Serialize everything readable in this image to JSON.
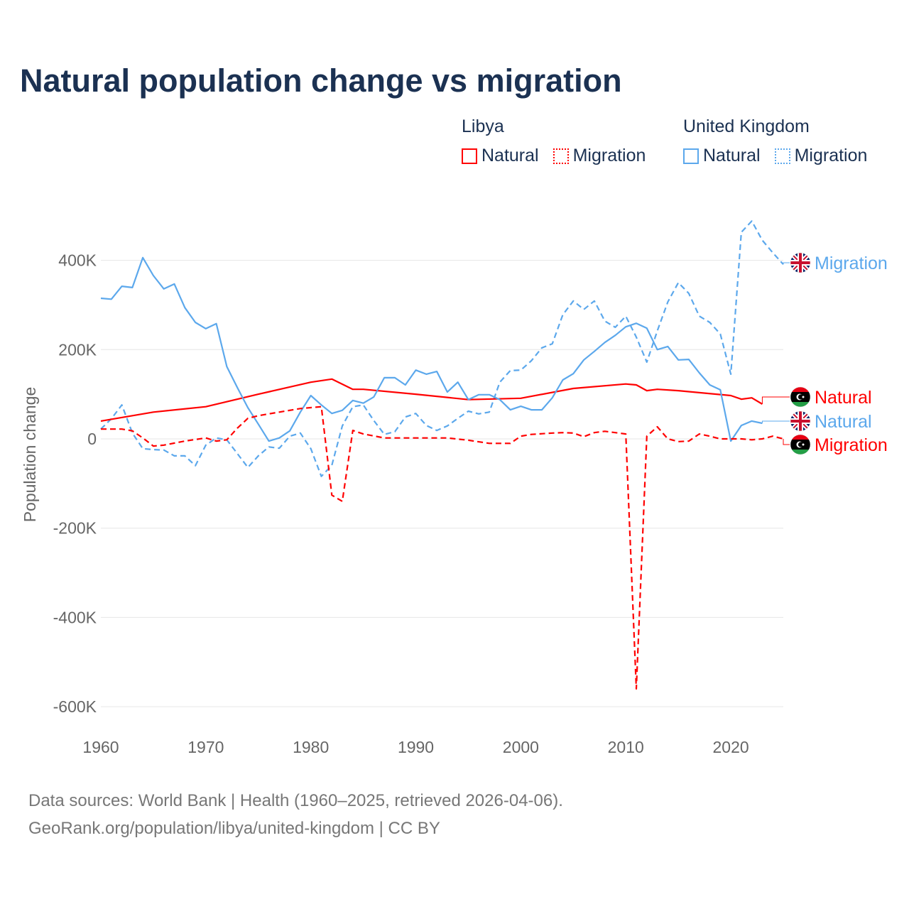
{
  "title": "Natural population change vs migration",
  "legend": {
    "groups": [
      {
        "name": "Libya",
        "items": [
          {
            "label": "Natural",
            "style": "solid",
            "color": "#ff0000"
          },
          {
            "label": "Migration",
            "style": "dotted",
            "color": "#ff0000"
          }
        ]
      },
      {
        "name": "United Kingdom",
        "items": [
          {
            "label": "Natural",
            "style": "solid",
            "color": "#5ca8ec"
          },
          {
            "label": "Migration",
            "style": "dotted",
            "color": "#5ca8ec"
          }
        ]
      }
    ]
  },
  "footer": {
    "line1": "Data sources: World Bank | Health (1960–2025, retrieved 2026-04-06).",
    "line2": "GeoRank.org/population/libya/united-kingdom | CC BY"
  },
  "chart_data": {
    "type": "line",
    "title": "Natural population change vs migration",
    "xlabel": "",
    "ylabel": "Population change",
    "xlim": [
      1960,
      2025
    ],
    "ylim": [
      -600000,
      500000
    ],
    "xticks": [
      1960,
      1970,
      1980,
      1990,
      2000,
      2010,
      2020
    ],
    "xtick_labels": [
      "1960",
      "1970",
      "1980",
      "1990",
      "2000",
      "2010",
      "2020"
    ],
    "yticks": [
      400000,
      200000,
      0,
      -200000,
      -400000,
      -600000
    ],
    "ytick_labels": [
      "400K",
      "200K",
      "0",
      "-200K",
      "-400K",
      "-600K"
    ],
    "grid": true,
    "series": [
      {
        "name": "United Kingdom Migration",
        "end_label": "Migration",
        "country": "uk",
        "color": "#5ca8ec",
        "dash": true,
        "x": [
          1960,
          1961,
          1962,
          1963,
          1964,
          1965,
          1966,
          1967,
          1968,
          1969,
          1970,
          1971,
          1972,
          1973,
          1974,
          1975,
          1976,
          1977,
          1978,
          1979,
          1980,
          1981,
          1982,
          1983,
          1984,
          1985,
          1986,
          1987,
          1988,
          1989,
          1990,
          1991,
          1992,
          1993,
          1994,
          1995,
          1996,
          1997,
          1998,
          1999,
          2000,
          2001,
          2002,
          2003,
          2004,
          2005,
          2006,
          2007,
          2008,
          2009,
          2010,
          2011,
          2012,
          2013,
          2014,
          2015,
          2016,
          2017,
          2018,
          2019,
          2020,
          2021,
          2022,
          2023,
          2024,
          2025
        ],
        "y": [
          22000,
          45000,
          76000,
          13000,
          -22000,
          -24000,
          -25000,
          -38000,
          -38000,
          -60000,
          -14000,
          2000,
          -2000,
          -33000,
          -64000,
          -38000,
          -18000,
          -21000,
          6000,
          13000,
          -22000,
          -84000,
          -59000,
          29000,
          72000,
          76000,
          41000,
          10000,
          16000,
          49000,
          57000,
          30000,
          19000,
          29000,
          46000,
          62000,
          56000,
          60000,
          127000,
          153000,
          154000,
          175000,
          204000,
          213000,
          278000,
          309000,
          290000,
          309000,
          264000,
          250000,
          275000,
          228000,
          172000,
          242000,
          307000,
          350000,
          326000,
          275000,
          261000,
          235000,
          145000,
          463000,
          488000,
          445000,
          417000,
          391000
        ]
      },
      {
        "name": "Libya Natural",
        "end_label": "Natural",
        "country": "libya",
        "color": "#ff0000",
        "dash": false,
        "x": [
          1960,
          1965,
          1970,
          1975,
          1980,
          1982,
          1984,
          1985,
          1990,
          1995,
          2000,
          2005,
          2010,
          2011,
          2012,
          2013,
          2015,
          2020,
          2021,
          2022,
          2023
        ],
        "y": [
          40000,
          60000,
          72000,
          100000,
          127000,
          134000,
          111000,
          111000,
          100000,
          88000,
          91000,
          113000,
          123000,
          121000,
          108000,
          111000,
          108000,
          97000,
          89000,
          92000,
          78000
        ]
      },
      {
        "name": "United Kingdom Natural",
        "end_label": "Natural",
        "country": "uk",
        "color": "#5ca8ec",
        "dash": false,
        "x": [
          1960,
          1961,
          1962,
          1963,
          1964,
          1965,
          1966,
          1967,
          1968,
          1969,
          1970,
          1971,
          1972,
          1973,
          1974,
          1975,
          1976,
          1977,
          1978,
          1979,
          1980,
          1981,
          1982,
          1983,
          1984,
          1985,
          1986,
          1987,
          1988,
          1989,
          1990,
          1991,
          1992,
          1993,
          1994,
          1995,
          1996,
          1997,
          1998,
          1999,
          2000,
          2001,
          2002,
          2003,
          2004,
          2005,
          2006,
          2007,
          2008,
          2009,
          2010,
          2011,
          2012,
          2013,
          2014,
          2015,
          2016,
          2017,
          2018,
          2019,
          2020,
          2021,
          2022,
          2023
        ],
        "y": [
          315000,
          313000,
          342000,
          339000,
          406000,
          366000,
          336000,
          347000,
          294000,
          261000,
          247000,
          258000,
          162000,
          115000,
          70000,
          33000,
          -5000,
          2000,
          18000,
          60000,
          97000,
          76000,
          57000,
          64000,
          86000,
          80000,
          94000,
          137000,
          137000,
          121000,
          154000,
          145000,
          151000,
          105000,
          127000,
          88000,
          99000,
          99000,
          88000,
          65000,
          73000,
          65000,
          65000,
          92000,
          132000,
          146000,
          177000,
          196000,
          216000,
          232000,
          251000,
          259000,
          248000,
          200000,
          207000,
          177000,
          178000,
          148000,
          121000,
          110000,
          -5000,
          30000,
          40000,
          35000
        ]
      },
      {
        "name": "Libya Migration",
        "end_label": "Migration",
        "country": "libya",
        "color": "#ff0000",
        "dash": true,
        "x": [
          1960,
          1962,
          1963,
          1964,
          1965,
          1966,
          1968,
          1970,
          1971,
          1972,
          1973,
          1974,
          1975,
          1977,
          1979,
          1981,
          1982,
          1983,
          1984,
          1985,
          1987,
          1990,
          1993,
          1995,
          1997,
          1999,
          2000,
          2001,
          2003,
          2004,
          2005,
          2006,
          2007,
          2008,
          2009,
          2010,
          2011,
          2012,
          2013,
          2014,
          2015,
          2016,
          2017,
          2018,
          2019,
          2020,
          2021,
          2022,
          2023,
          2024,
          2025
        ],
        "y": [
          22000,
          22000,
          18000,
          2000,
          -16000,
          -14000,
          -5000,
          2000,
          -5000,
          -2000,
          24000,
          46000,
          52000,
          60000,
          68000,
          72000,
          -126000,
          -140000,
          19000,
          11000,
          2000,
          2000,
          2000,
          -3000,
          -10000,
          -10000,
          6000,
          10000,
          13000,
          14000,
          13000,
          5000,
          14000,
          17000,
          14000,
          11000,
          -560000,
          6000,
          27000,
          0,
          -6000,
          -5000,
          11000,
          6000,
          0,
          0,
          0,
          -2000,
          0,
          6000,
          0
        ]
      }
    ]
  }
}
